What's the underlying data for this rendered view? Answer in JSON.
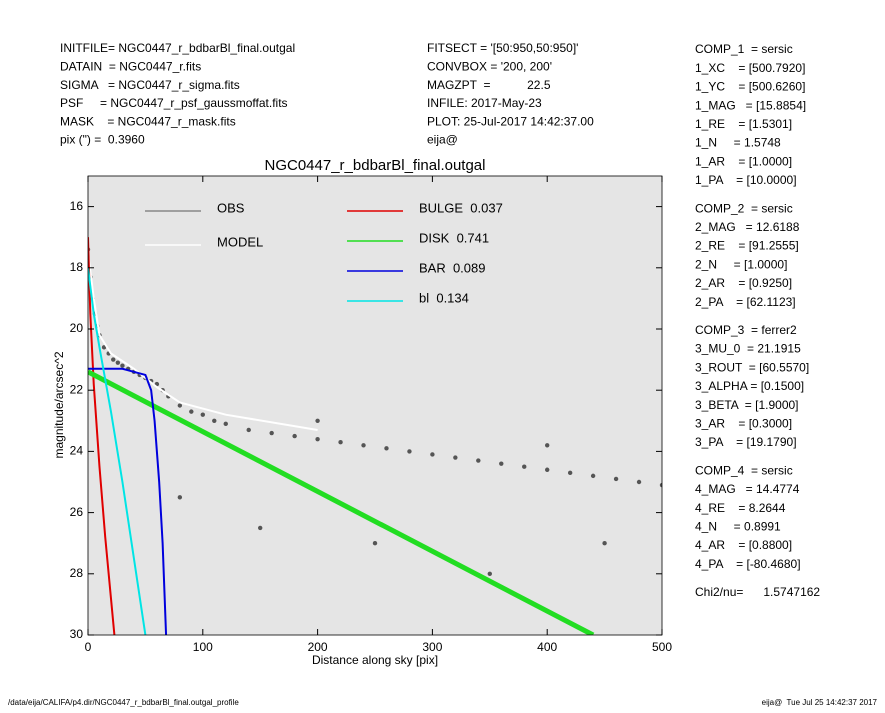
{
  "header_left": [
    "INITFILE= NGC0447_r_bdbarBl_final.outgal",
    "DATAIN  = NGC0447_r.fits",
    "SIGMA   = NGC0447_r_sigma.fits",
    "PSF     = NGC0447_r_psf_gaussmoffat.fits",
    "MASK    = NGC0447_r_mask.fits",
    "pix (\") =  0.3960"
  ],
  "header_mid": [
    "FITSECT = '[50:950,50:950]'",
    "CONVBOX = '200, 200'",
    "MAGZPT  =           22.5",
    "INFILE: 2017-May-23",
    "PLOT: 25-Jul-2017 14:42:37.00",
    "eija@"
  ],
  "params": [
    [
      "COMP_1  = sersic",
      "1_XC    = [500.7920]",
      "1_YC    = [500.6260]",
      "1_MAG   = [15.8854]",
      "1_RE    = [1.5301]",
      "1_N     = 1.5748",
      "1_AR    = [1.0000]",
      "1_PA    = [10.0000]"
    ],
    [
      "COMP_2  = sersic",
      "2_MAG   = 12.6188",
      "2_RE    = [91.2555]",
      "2_N     = [1.0000]",
      "2_AR    = [0.9250]",
      "2_PA    = [62.1123]"
    ],
    [
      "COMP_3  = ferrer2",
      "3_MU_0  = 21.1915",
      "3_ROUT  = [60.5570]",
      "3_ALPHA = [0.1500]",
      "3_BETA  = [1.9000]",
      "3_AR    = [0.3000]",
      "3_PA    = [19.1790]"
    ],
    [
      "COMP_4  = sersic",
      "4_MAG   = 14.4774",
      "4_RE    = 8.2644",
      "4_N     = 0.8991",
      "4_AR    = [0.8800]",
      "4_PA    = [-80.4680]"
    ],
    [
      "Chi2/nu=      1.5747162"
    ]
  ],
  "footer_left": "/data/eija/CALIFA/p4.dir/NGC0447_r_bdbarBl_final.outgal_profile",
  "footer_right": "eija@  Tue Jul 25 14:42:37 2017",
  "chart_data": {
    "type": "profile",
    "title": "NGC0447_r_bdbarBl_final.outgal",
    "xlabel": "Distance along sky [pix]",
    "ylabel": "magnitude/arcsec^2",
    "xlim": [
      0,
      500
    ],
    "xticks": [
      0,
      100,
      200,
      300,
      400,
      500
    ],
    "ylim": [
      30,
      15
    ],
    "yticks": [
      16,
      18,
      20,
      22,
      24,
      26,
      28,
      30
    ],
    "background": "#e5e5e5",
    "series": [
      {
        "name": "OBS",
        "color": "#555555",
        "mode": "markers",
        "x": [
          0,
          2,
          4,
          6,
          8,
          10,
          14,
          18,
          22,
          26,
          30,
          35,
          40,
          45,
          50,
          55,
          60,
          65,
          70,
          80,
          90,
          100,
          110,
          120,
          140,
          160,
          180,
          200,
          220,
          240,
          260,
          280,
          300,
          320,
          340,
          360,
          380,
          400,
          420,
          440,
          460,
          480,
          500,
          80,
          150,
          250,
          350,
          450,
          200,
          400
        ],
        "values": [
          17.4,
          18.3,
          19.0,
          19.5,
          19.9,
          20.2,
          20.6,
          20.8,
          21.0,
          21.1,
          21.2,
          21.3,
          21.4,
          21.5,
          21.6,
          21.7,
          21.8,
          22.0,
          22.2,
          22.5,
          22.7,
          22.8,
          23.0,
          23.1,
          23.3,
          23.4,
          23.5,
          23.6,
          23.7,
          23.8,
          23.9,
          24.0,
          24.1,
          24.2,
          24.3,
          24.4,
          24.5,
          24.6,
          24.7,
          24.8,
          24.9,
          25.0,
          25.1,
          25.5,
          26.5,
          27.0,
          28.0,
          27.0,
          23.0,
          23.8
        ]
      },
      {
        "name": "MODEL",
        "color": "#ffffff",
        "mode": "lines",
        "x": [
          0,
          5,
          10,
          20,
          40,
          60,
          80,
          120,
          200
        ],
        "values": [
          17.5,
          19.0,
          20.2,
          20.8,
          21.3,
          21.9,
          22.4,
          22.8,
          23.3
        ]
      },
      {
        "name": "BULGE  0.037",
        "color": "#e00000",
        "mode": "lines",
        "x": [
          0,
          2,
          5,
          10,
          15,
          20,
          23
        ],
        "values": [
          17.0,
          19.5,
          21.8,
          24.5,
          26.8,
          28.8,
          30
        ]
      },
      {
        "name": "DISK  0.741",
        "color": "#22dd22",
        "mode": "lines",
        "x": [
          0,
          440
        ],
        "values": [
          21.4,
          30
        ]
      },
      {
        "name": "BAR  0.089",
        "color": "#0000dd",
        "mode": "lines",
        "x": [
          0,
          30,
          50,
          55,
          58,
          62,
          65,
          68
        ],
        "values": [
          21.3,
          21.3,
          21.5,
          22.0,
          23.0,
          25.0,
          27.0,
          30
        ]
      },
      {
        "name": "bl  0.134",
        "color": "#00e5e5",
        "mode": "lines",
        "x": [
          0,
          5,
          10,
          20,
          30,
          40,
          50
        ],
        "values": [
          18.0,
          19.5,
          20.6,
          22.7,
          25.0,
          27.5,
          30
        ]
      }
    ]
  }
}
